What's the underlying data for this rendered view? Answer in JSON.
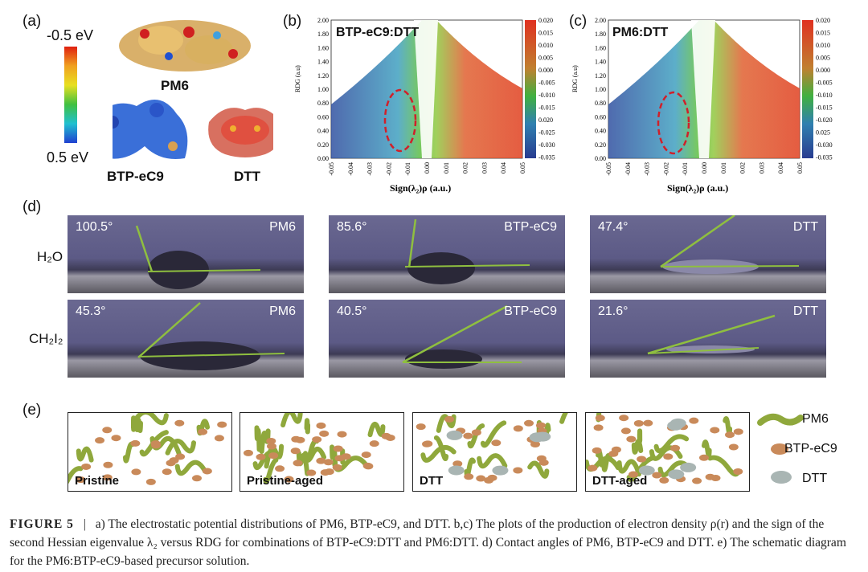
{
  "panel_a": {
    "label": "(a)",
    "scale_top": "-0.5 eV",
    "scale_bottom": "0.5 eV",
    "mol1": "PM6",
    "mol2": "BTP-eC9",
    "mol3": "DTT"
  },
  "panel_b": {
    "label": "(b)",
    "title": "BTP-eC9:DTT",
    "xlabel": "Sign(λ₂)ρ (a.u.)",
    "ylabel": "RDG (a.u)",
    "yticks": [
      "2.00",
      "1.80",
      "1.60",
      "1.40",
      "1.20",
      "1.00",
      "0.80",
      "0.60",
      "0.40",
      "0.20",
      "0.00"
    ],
    "xticks": [
      "-0.05",
      "-0.04",
      "-0.03",
      "-0.02",
      "-0.01",
      "0.00",
      "0.01",
      "0.02",
      "0.03",
      "0.04",
      "0.05"
    ],
    "cbar": [
      "0.020",
      "0.015",
      "0.010",
      "0.005",
      "0.000",
      "-0.005",
      "-0.010",
      "-0.015",
      "0.020",
      "-0.025",
      "-0.030",
      "-0.035"
    ]
  },
  "panel_c": {
    "label": "(c)",
    "title": "PM6:DTT",
    "xlabel": "Sign(λ₂)ρ (a.u.)",
    "ylabel": "RDG (a.u)",
    "yticks": [
      "2.00",
      "1.80",
      "1.60",
      "1.40",
      "1.20",
      "1.00",
      "0.80",
      "0.60",
      "0.40",
      "0.20",
      "0.00"
    ],
    "xticks": [
      "-0.05",
      "-0.04",
      "-0.03",
      "-0.02",
      "-0.01",
      "0.00",
      "0.01",
      "0.02",
      "0.03",
      "0.04",
      "0.05"
    ],
    "cbar": [
      "0.020",
      "0.015",
      "0.010",
      "0.005",
      "0.000",
      "-0.005",
      "-0.010",
      "-0.015",
      "-0.020",
      "0.025",
      "-0.030",
      "-0.035"
    ]
  },
  "panel_d": {
    "label": "(d)",
    "solvent1": "H₂O",
    "solvent2": "CH₂I₂",
    "photos": [
      {
        "angle": "100.5°",
        "material": "PM6"
      },
      {
        "angle": "85.6°",
        "material": "BTP-eC9"
      },
      {
        "angle": "47.4°",
        "material": "DTT"
      },
      {
        "angle": "45.3°",
        "material": "PM6"
      },
      {
        "angle": "40.5°",
        "material": "BTP-eC9"
      },
      {
        "angle": "21.6°",
        "material": "DTT"
      }
    ]
  },
  "panel_e": {
    "label": "(e)",
    "boxes": [
      "Pristine",
      "Pristine-aged",
      "DTT",
      "DTT-aged"
    ],
    "legend": [
      "PM6",
      "BTP-eC9",
      "DTT"
    ]
  },
  "caption": {
    "figure": "FIGURE 5",
    "sep": "|",
    "text": "a) The electrostatic potential distributions of PM6, BTP-eC9, and DTT. b,c) The plots of the production of electron density ρ(r) and the sign of the second Hessian eigenvalue λ₂ versus RDG for combinations of BTP-eC9:DTT and PM6:DTT. d) Contact angles of PM6, BTP-eC9 and DTT. e) The schematic diagram for the PM6:BTP-eC9-based precursor solution."
  },
  "colors": {
    "accent_green": "#8fbf3f",
    "pm6_chain": "#8fa83c",
    "btp_dot": "#c98a5a",
    "dtt_dot": "#a9b5b3",
    "ellipse": "#d0202a"
  }
}
